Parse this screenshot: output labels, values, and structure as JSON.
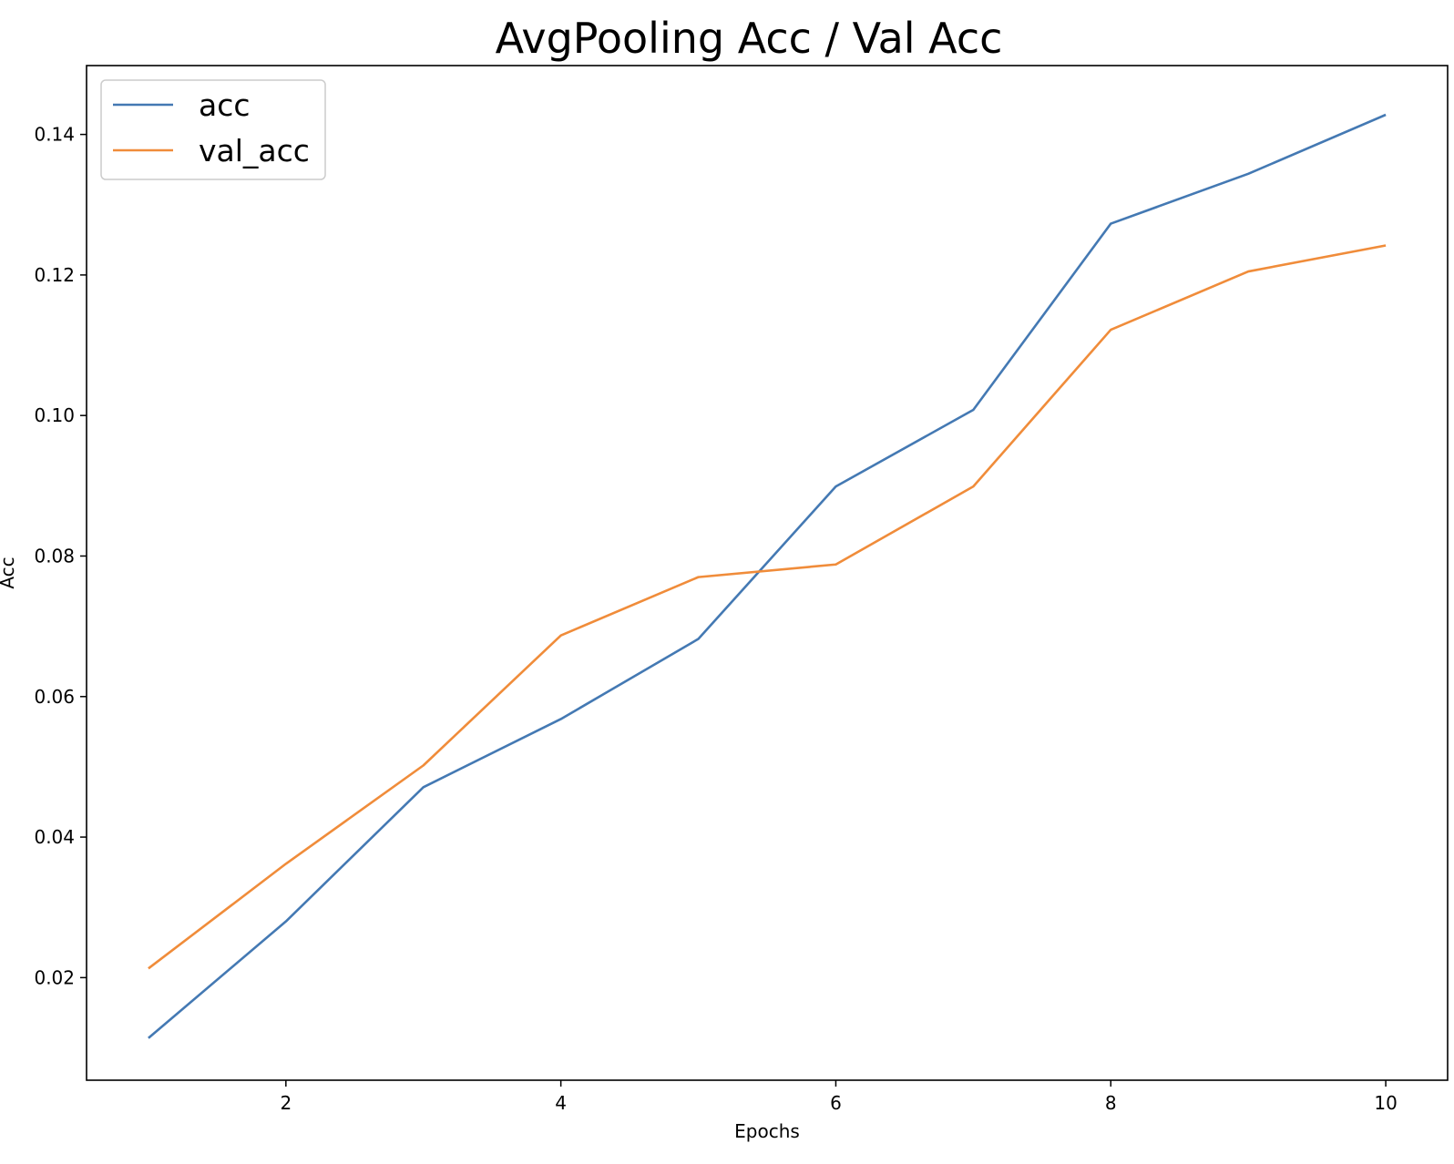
{
  "chart_data": {
    "type": "line",
    "title": "AvgPooling Acc / Val Acc",
    "xlabel": "Epochs",
    "ylabel": "Acc",
    "x": [
      1,
      2,
      3,
      4,
      5,
      6,
      7,
      8,
      9,
      10
    ],
    "xlim": [
      0.55,
      10.45
    ],
    "ylim": [
      0.0054,
      0.1498
    ],
    "xticks": [
      2,
      4,
      6,
      8,
      10
    ],
    "xtick_labels": [
      "2",
      "4",
      "6",
      "8",
      "10"
    ],
    "yticks": [
      0.02,
      0.04,
      0.06,
      0.08,
      0.1,
      0.12,
      0.14
    ],
    "ytick_labels": [
      "0.02",
      "0.04",
      "0.06",
      "0.08",
      "0.10",
      "0.12",
      "0.14"
    ],
    "grid": false,
    "legend": "top-left",
    "series": [
      {
        "name": "acc",
        "color": "#4479b3",
        "values": [
          0.0114,
          0.028,
          0.0471,
          0.0568,
          0.0682,
          0.0899,
          0.1008,
          0.1273,
          0.1344,
          0.1428
        ]
      },
      {
        "name": "val_acc",
        "color": "#f08c3a",
        "values": [
          0.0213,
          0.0362,
          0.0502,
          0.0687,
          0.077,
          0.0788,
          0.0899,
          0.1122,
          0.1205,
          0.1242
        ]
      }
    ]
  }
}
